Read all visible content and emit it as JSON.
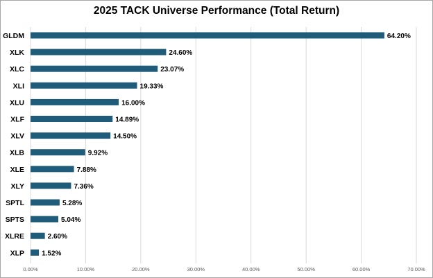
{
  "chart_data": {
    "type": "bar",
    "orientation": "horizontal",
    "title": "2025 TACK Universe Performance (Total Return)",
    "categories": [
      "GLDM",
      "XLK",
      "XLC",
      "XLI",
      "XLU",
      "XLF",
      "XLV",
      "XLB",
      "XLE",
      "XLY",
      "SPTL",
      "SPTS",
      "XLRE",
      "XLP"
    ],
    "values": [
      64.2,
      24.6,
      23.07,
      19.33,
      16.0,
      14.89,
      14.5,
      9.92,
      7.88,
      7.36,
      5.28,
      5.04,
      2.6,
      1.52
    ],
    "value_labels": [
      "64.20%",
      "24.60%",
      "23.07%",
      "19.33%",
      "16.00%",
      "14.89%",
      "14.50%",
      "9.92%",
      "7.88%",
      "7.36%",
      "5.28%",
      "5.04%",
      "2.60%",
      "1.52%"
    ],
    "xlim": [
      0,
      70
    ],
    "x_ticks": [
      "0.00%",
      "10.00%",
      "20.00%",
      "30.00%",
      "40.00%",
      "50.00%",
      "60.00%",
      "70.00%"
    ],
    "grid": true,
    "legend": "none",
    "bar_color": "#1f5c7a",
    "grid_color": "#d9d9d9"
  }
}
